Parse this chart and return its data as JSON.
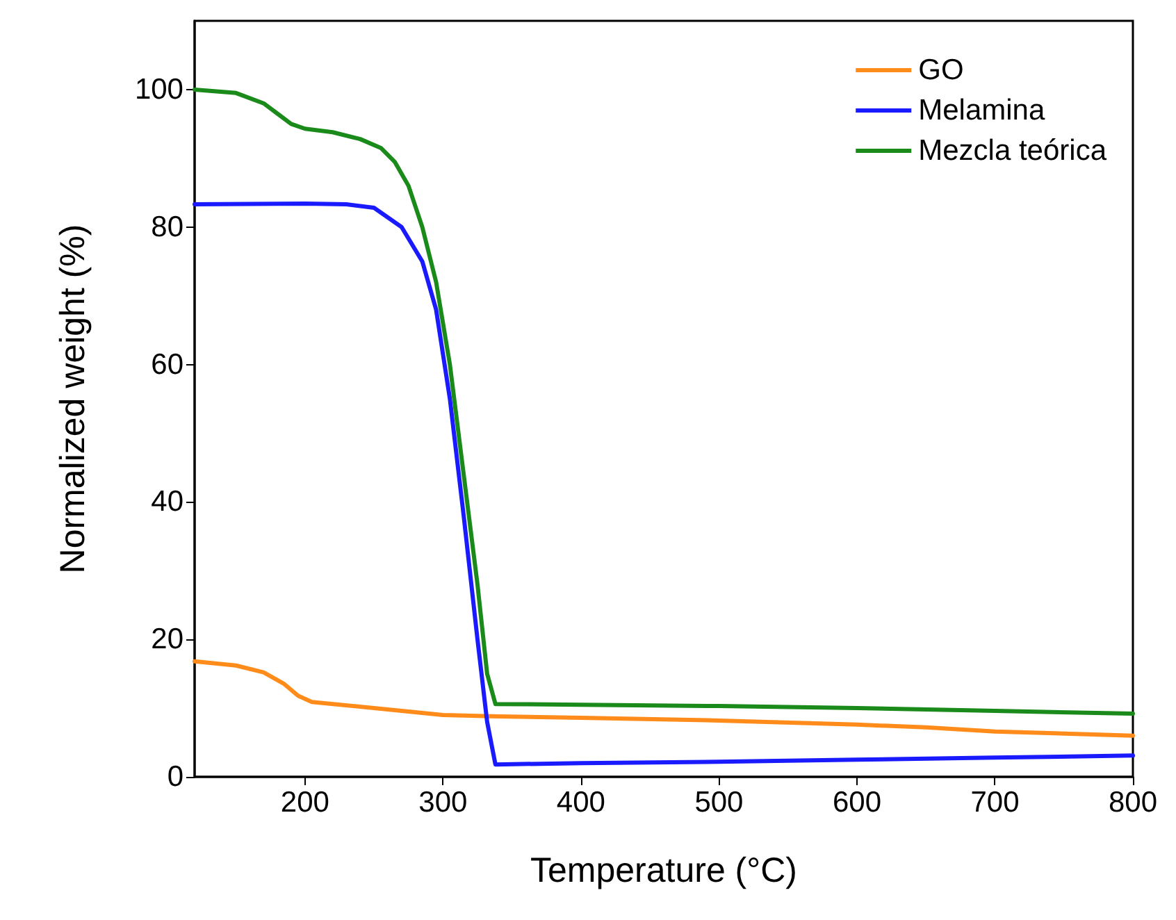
{
  "chart_data": {
    "type": "line",
    "xlabel": "Temperature (°C)",
    "ylabel": "Normalized weight (%)",
    "xlim": [
      120,
      800
    ],
    "xticks": [
      200,
      300,
      400,
      500,
      600,
      700,
      800
    ],
    "ylim": [
      0,
      110
    ],
    "yticks": [
      0,
      20,
      40,
      60,
      80,
      100
    ],
    "grid": false,
    "legend": "top right",
    "marker": "none",
    "line_style": "solid",
    "series": [
      {
        "name": "GO",
        "color": "#ff8c1a",
        "x": [
          120,
          150,
          170,
          185,
          195,
          205,
          250,
          300,
          340,
          400,
          500,
          600,
          650,
          700,
          800
        ],
        "values": [
          16.8,
          16.2,
          15.2,
          13.5,
          11.8,
          10.9,
          10,
          9,
          8.8,
          8.6,
          8.2,
          7.6,
          7.2,
          6.6,
          6
        ]
      },
      {
        "name": "Melamina",
        "color": "#1a1aff",
        "x": [
          120,
          200,
          230,
          250,
          270,
          285,
          295,
          305,
          315,
          325,
          332,
          338,
          400,
          500,
          600,
          700,
          800
        ],
        "values": [
          83.3,
          83.4,
          83.3,
          82.8,
          80,
          75,
          68,
          55,
          38,
          20,
          8,
          1.8,
          2,
          2.2,
          2.5,
          2.8,
          3.1
        ]
      },
      {
        "name": "Mezcla teórica",
        "color": "#1a8a1a",
        "x": [
          120,
          150,
          170,
          180,
          190,
          200,
          220,
          240,
          255,
          265,
          275,
          285,
          295,
          305,
          315,
          325,
          332,
          338,
          400,
          500,
          600,
          700,
          800
        ],
        "values": [
          100,
          99.5,
          98,
          96.5,
          95,
          94.3,
          93.8,
          92.8,
          91.5,
          89.5,
          86,
          80,
          72,
          60,
          44,
          28,
          15,
          10.6,
          10.5,
          10.3,
          10,
          9.6,
          9.2
        ]
      }
    ]
  }
}
